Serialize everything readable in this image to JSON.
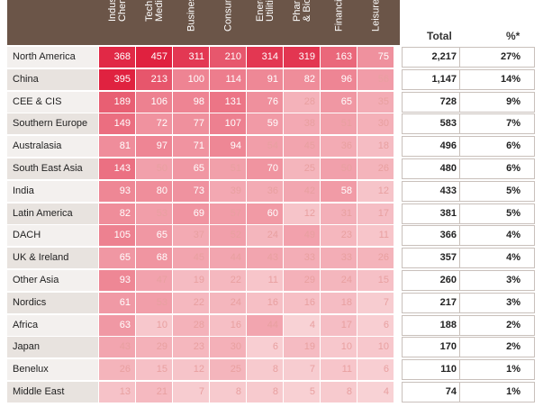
{
  "chart_data": {
    "type": "heatmap",
    "columns": [
      "Industrials, Chemicals",
      "Technology, Media",
      "Business",
      "Consumer",
      "Energy, Utilities",
      "Pharma & Biotech",
      "Financial",
      "Leisure"
    ],
    "column_labels": [
      "Industrial\nChemica",
      "Technolo\nMedia",
      "Business",
      "Consum",
      "Energy, &\nUtilities",
      "Pharma\n& Biote",
      "Financia",
      "Leisure"
    ],
    "total_header": "Total",
    "pct_header": "%*",
    "rows": [
      {
        "region": "North America",
        "values": [
          368,
          457,
          311,
          210,
          314,
          319,
          163,
          75
        ],
        "total": "2,217",
        "pct": "27%"
      },
      {
        "region": "China",
        "values": [
          395,
          213,
          100,
          114,
          91,
          82,
          96,
          56
        ],
        "total": "1,147",
        "pct": "14%"
      },
      {
        "region": "CEE & CIS",
        "values": [
          189,
          106,
          98,
          131,
          76,
          28,
          65,
          35
        ],
        "total": "728",
        "pct": "9%"
      },
      {
        "region": "Southern Europe",
        "values": [
          149,
          72,
          77,
          107,
          59,
          38,
          51,
          30
        ],
        "total": "583",
        "pct": "7%"
      },
      {
        "region": "Australasia",
        "values": [
          81,
          97,
          71,
          94,
          54,
          45,
          36,
          18
        ],
        "total": "496",
        "pct": "6%"
      },
      {
        "region": "South East Asia",
        "values": [
          143,
          50,
          65,
          51,
          70,
          25,
          50,
          26
        ],
        "total": "480",
        "pct": "6%"
      },
      {
        "region": "India",
        "values": [
          93,
          80,
          73,
          39,
          36,
          42,
          58,
          12
        ],
        "total": "433",
        "pct": "5%"
      },
      {
        "region": "Latin America",
        "values": [
          82,
          53,
          69,
          57,
          60,
          12,
          31,
          17
        ],
        "total": "381",
        "pct": "5%"
      },
      {
        "region": "DACH",
        "values": [
          105,
          65,
          37,
          52,
          24,
          49,
          23,
          11
        ],
        "total": "366",
        "pct": "4%"
      },
      {
        "region": "UK & Ireland",
        "values": [
          65,
          68,
          45,
          44,
          43,
          33,
          33,
          26
        ],
        "total": "357",
        "pct": "4%"
      },
      {
        "region": "Other Asia",
        "values": [
          93,
          47,
          19,
          22,
          11,
          29,
          24,
          15
        ],
        "total": "260",
        "pct": "3%"
      },
      {
        "region": "Nordics",
        "values": [
          61,
          53,
          22,
          24,
          16,
          16,
          18,
          7
        ],
        "total": "217",
        "pct": "3%"
      },
      {
        "region": "Africa",
        "values": [
          63,
          10,
          28,
          16,
          44,
          4,
          17,
          6
        ],
        "total": "188",
        "pct": "2%"
      },
      {
        "region": "Japan",
        "values": [
          43,
          29,
          23,
          30,
          6,
          19,
          10,
          10
        ],
        "total": "170",
        "pct": "2%"
      },
      {
        "region": "Benelux",
        "values": [
          26,
          15,
          12,
          25,
          8,
          7,
          11,
          6
        ],
        "total": "110",
        "pct": "1%"
      },
      {
        "region": "Middle East",
        "values": [
          13,
          21,
          7,
          8,
          8,
          5,
          8,
          4
        ],
        "total": "74",
        "pct": "1%"
      }
    ],
    "color_scale": {
      "low": "#fbe6e6",
      "high": "#e0213f",
      "min": 0,
      "max": 400
    },
    "header_color": "#6b5548"
  }
}
